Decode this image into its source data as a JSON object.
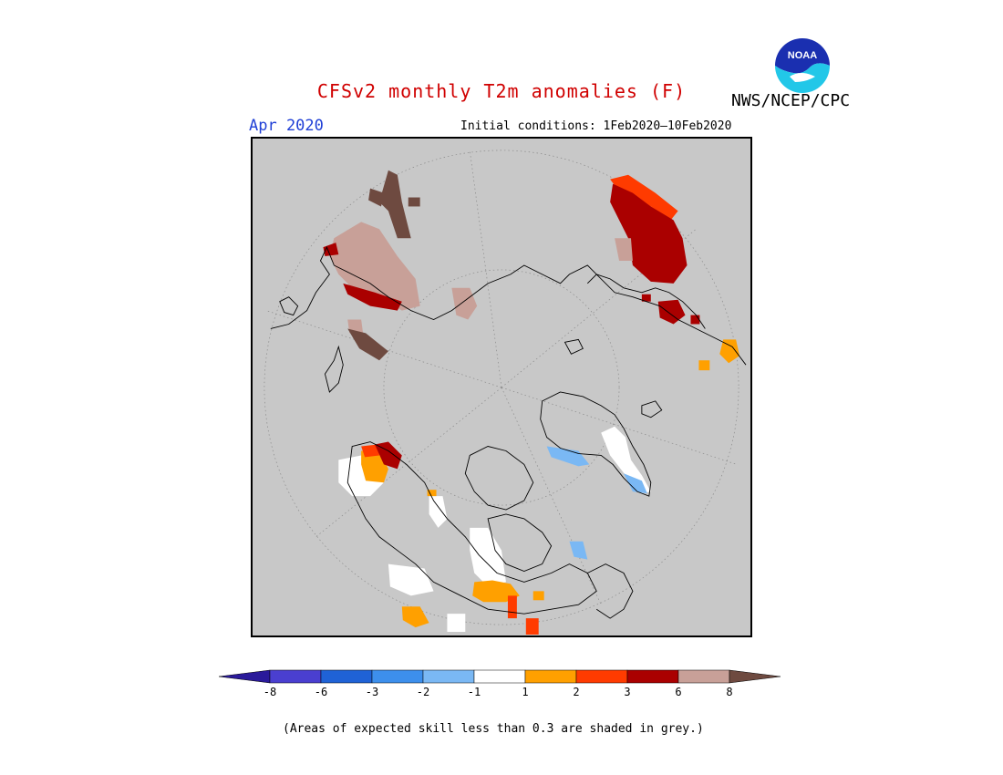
{
  "header": {
    "title": "CFSv2 monthly T2m anomalies (F)",
    "agency": "NWS/NCEP/CPC",
    "logo_text": "NOAA",
    "month": "Apr 2020",
    "initial_conditions": "Initial conditions: 1Feb2020—10Feb2020"
  },
  "colorbar": {
    "tick_labels": [
      "-8",
      "-6",
      "-3",
      "-2",
      "-1",
      "1",
      "2",
      "3",
      "6",
      "8"
    ],
    "colors": [
      "#2a1a9a",
      "#4a3fd0",
      "#1f62d6",
      "#3d8fec",
      "#7ab8f4",
      "#ffffff",
      "#ffa000",
      "#ff3b00",
      "#aa0000",
      "#c8a098",
      "#6e4a40"
    ]
  },
  "footnote": "(Areas of expected skill less than 0.3 are shaded in grey.)",
  "map": {
    "projection": "polar stereographic north",
    "background": "#c8c8c8"
  }
}
